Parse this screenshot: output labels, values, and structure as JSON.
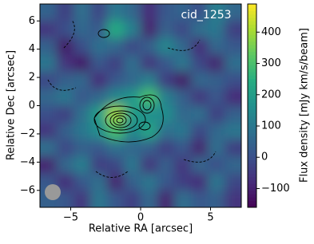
{
  "chart_data": {
    "type": "heatmap",
    "annotation": "cid_1253",
    "xlabel": "Relative RA [arcsec]",
    "ylabel": "Relative Dec [arcsec]",
    "colorbar_label": "Flux density [mJy km/s/beam]",
    "colormap": "viridis",
    "xlim": [
      -7.2,
      7.2
    ],
    "ylim": [
      -7.2,
      7.2
    ],
    "xticks": [
      {
        "value": -5,
        "label": "−5"
      },
      0,
      5
    ],
    "yticks": [
      {
        "value": -6,
        "label": "−6"
      },
      {
        "value": -4,
        "label": "−4"
      },
      {
        "value": -2,
        "label": "−2"
      },
      0,
      2,
      4,
      6
    ],
    "clim": [
      -160,
      490
    ],
    "cticks": [
      {
        "value": -100,
        "label": "−100"
      },
      0,
      100,
      200,
      300,
      400
    ],
    "x": [
      -6.6,
      -5.4,
      -4.2,
      -3,
      -1.8,
      -0.6,
      0.6,
      1.8,
      3,
      4.2,
      5.4,
      6.6
    ],
    "y": [
      6.6,
      5.4,
      4.2,
      3,
      1.8,
      0.6,
      -0.6,
      -1.8,
      -3,
      -4.2,
      -5.4,
      -6.6
    ],
    "z": [
      [
        50,
        -40,
        80,
        -20,
        100,
        60,
        -80,
        20,
        50,
        0,
        120,
        60
      ],
      [
        -60,
        0,
        60,
        20,
        240,
        120,
        -100,
        40,
        -20,
        80,
        100,
        -40
      ],
      [
        40,
        -120,
        0,
        80,
        60,
        -20,
        40,
        140,
        60,
        -80,
        60,
        20
      ],
      [
        100,
        -60,
        -120,
        20,
        -40,
        80,
        -60,
        20,
        100,
        -20,
        -100,
        80
      ],
      [
        -20,
        40,
        60,
        -80,
        20,
        60,
        120,
        -40,
        -120,
        60,
        40,
        0
      ],
      [
        60,
        100,
        20,
        60,
        140,
        180,
        300,
        120,
        40,
        -60,
        20,
        -80
      ],
      [
        0,
        -40,
        80,
        200,
        400,
        200,
        160,
        160,
        60,
        80,
        -40,
        40
      ],
      [
        -60,
        40,
        100,
        160,
        300,
        140,
        220,
        80,
        100,
        -20,
        60,
        100
      ],
      [
        80,
        -20,
        40,
        20,
        80,
        60,
        40,
        -40,
        20,
        -100,
        80,
        -40
      ],
      [
        -100,
        60,
        120,
        -40,
        -20,
        100,
        -60,
        40,
        -60,
        60,
        0,
        60
      ],
      [
        20,
        -80,
        20,
        80,
        -100,
        40,
        100,
        20,
        -40,
        -80,
        100,
        -20
      ],
      [
        40,
        20,
        -60,
        100,
        20,
        -40,
        60,
        -100,
        80,
        20,
        40,
        -60
      ]
    ]
  }
}
